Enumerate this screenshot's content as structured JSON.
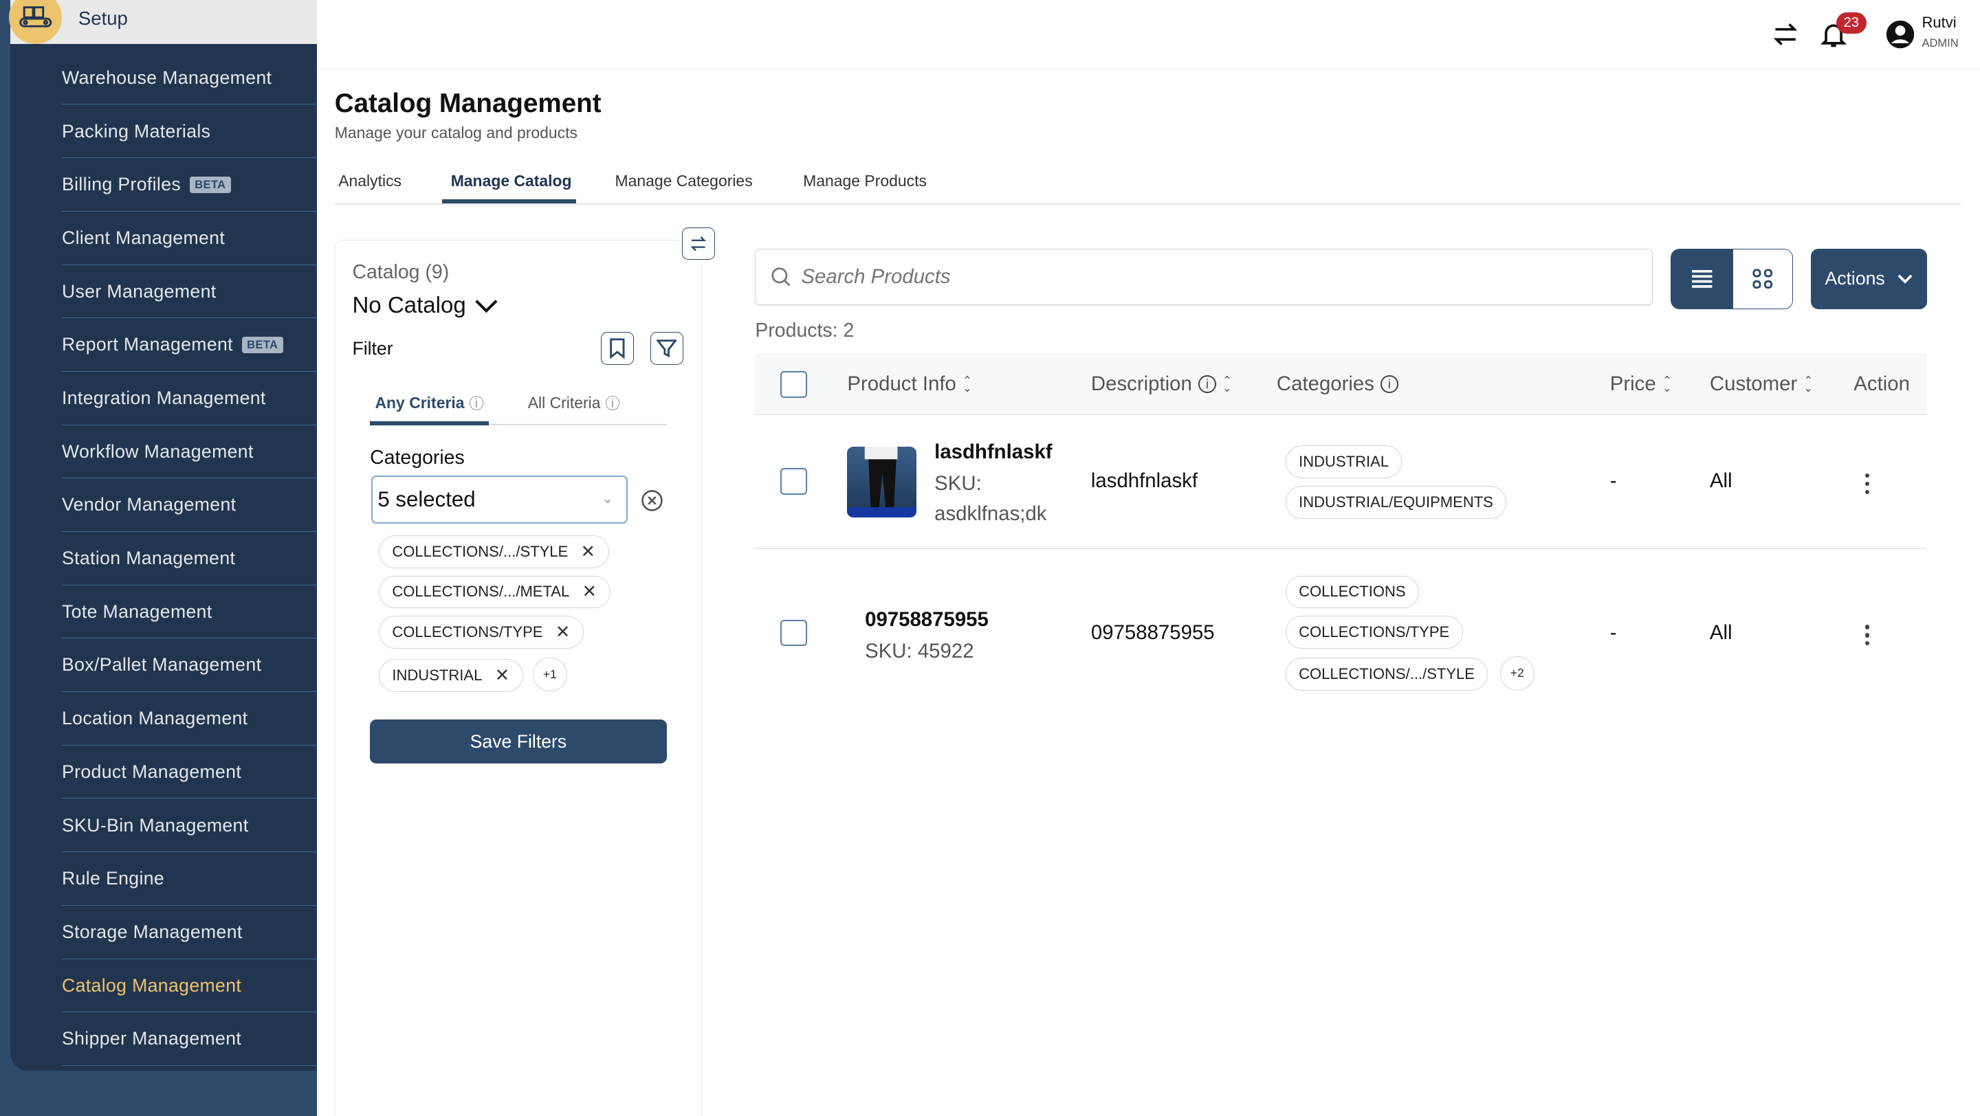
{
  "sidebar": {
    "header": "Setup",
    "items": [
      {
        "label": "Warehouse Management"
      },
      {
        "label": "Packing Materials"
      },
      {
        "label": "Billing Profiles",
        "badge": "BETA"
      },
      {
        "label": "Client Management"
      },
      {
        "label": "User Management"
      },
      {
        "label": "Report Management",
        "badge": "BETA"
      },
      {
        "label": "Integration Management"
      },
      {
        "label": "Workflow Management"
      },
      {
        "label": "Vendor Management"
      },
      {
        "label": "Station Management"
      },
      {
        "label": "Tote Management"
      },
      {
        "label": "Box/Pallet Management"
      },
      {
        "label": "Location Management"
      },
      {
        "label": "Product Management"
      },
      {
        "label": "SKU-Bin Management"
      },
      {
        "label": "Rule Engine"
      },
      {
        "label": "Storage Management"
      },
      {
        "label": "Catalog Management",
        "active": true
      },
      {
        "label": "Shipper Management"
      }
    ]
  },
  "topbar": {
    "notification_count": "23",
    "user_name": "Rutvi",
    "user_role": "ADMIN"
  },
  "page": {
    "title": "Catalog Management",
    "subtitle": "Manage your catalog and products"
  },
  "tabs": [
    {
      "label": "Analytics"
    },
    {
      "label": "Manage Catalog",
      "active": true
    },
    {
      "label": "Manage Categories"
    },
    {
      "label": "Manage Products"
    }
  ],
  "filter_panel": {
    "catalog_count": "Catalog (9)",
    "catalog_selected": "No Catalog",
    "filter_label": "Filter",
    "criteria_tabs": [
      {
        "label": "Any Criteria",
        "active": true
      },
      {
        "label": "All Criteria"
      }
    ],
    "categories_label": "Categories",
    "categories_value": "5 selected",
    "chips": [
      "COLLECTIONS/.../STYLE",
      "COLLECTIONS/.../METAL",
      "COLLECTIONS/TYPE",
      "INDUSTRIAL"
    ],
    "more_chips": "+1",
    "save_label": "Save Filters"
  },
  "products": {
    "search_placeholder": "Search Products",
    "actions_label": "Actions",
    "count_label": "Products: 2",
    "columns": [
      "Product Info",
      "Description",
      "Categories",
      "Price",
      "Customer",
      "Action"
    ],
    "rows": [
      {
        "name": "lasdhfnlaskf",
        "sku_label": "SKU:",
        "sku": "asdklfnas;dk",
        "description": "lasdhfnlaskf",
        "categories": [
          "INDUSTRIAL",
          "INDUSTRIAL/EQUIPMENTS"
        ],
        "more": "",
        "price": "-",
        "customer": "All"
      },
      {
        "name": "09758875955",
        "sku_label": "SKU: 45922",
        "sku": "",
        "description": "09758875955",
        "categories": [
          "COLLECTIONS",
          "COLLECTIONS/TYPE",
          "COLLECTIONS/.../STYLE"
        ],
        "more": "+2",
        "price": "-",
        "customer": "All"
      }
    ]
  },
  "colors": {
    "primary": "#2d4a6b",
    "sidebar": "#22354f",
    "accent": "#ecc46e",
    "badge": "#c0262d"
  }
}
